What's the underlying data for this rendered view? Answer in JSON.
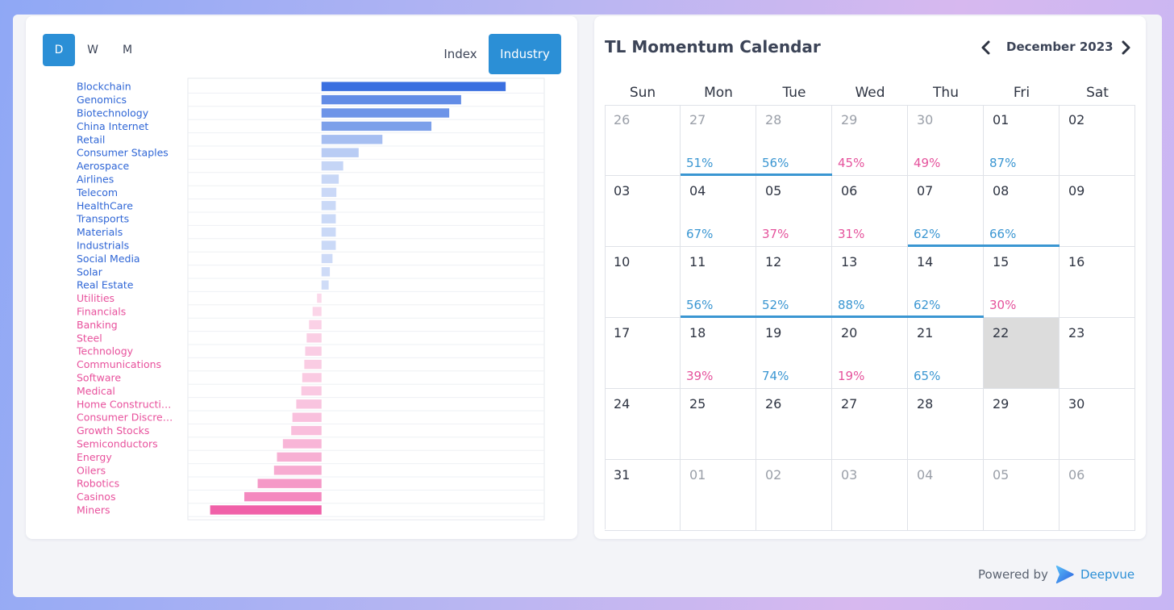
{
  "timeframes": [
    "D",
    "W",
    "M"
  ],
  "active_timeframe": "D",
  "views": {
    "index": "Index",
    "industry": "Industry"
  },
  "active_view": "Industry",
  "chart_data": {
    "type": "bar",
    "orientation": "horizontal",
    "categories": [
      "Blockchain",
      "Genomics",
      "Biotechnology",
      "China Internet",
      "Retail",
      "Consumer Staples",
      "Aerospace",
      "Airlines",
      "Telecom",
      "HealthCare",
      "Transports",
      "Materials",
      "Industrials",
      "Social Media",
      "Solar",
      "Real Estate",
      "Utilities",
      "Financials",
      "Banking",
      "Steel",
      "Technology",
      "Communications",
      "Software",
      "Medical",
      "Home Constructi…",
      "Consumer Discre…",
      "Growth Stocks",
      "Semiconductors",
      "Energy",
      "Oilers",
      "Robotics",
      "Casinos",
      "Miners"
    ],
    "values": [
      6.2,
      4.7,
      4.3,
      3.7,
      2.05,
      1.25,
      0.73,
      0.58,
      0.5,
      0.48,
      0.48,
      0.48,
      0.48,
      0.37,
      0.28,
      0.24,
      -0.15,
      -0.3,
      -0.42,
      -0.5,
      -0.55,
      -0.58,
      -0.65,
      -0.68,
      -0.85,
      -0.98,
      -1.02,
      -1.3,
      -1.5,
      -1.6,
      -2.15,
      -2.6,
      -3.75
    ],
    "xlim": [
      -4.5,
      7.5
    ],
    "positive_color": "#3a6fe0",
    "negative_color": "#f060a8",
    "positive_label_color": "#2f66d6",
    "negative_label_color": "#e8509c",
    "grid": true
  },
  "calendar": {
    "title": "TL Momentum Calendar",
    "month": "December 2023",
    "weekdays": [
      "Sun",
      "Mon",
      "Tue",
      "Wed",
      "Thu",
      "Fri",
      "Sat"
    ],
    "weeks": [
      [
        {
          "d": "26",
          "m": true
        },
        {
          "d": "27",
          "m": true,
          "p": "51%",
          "s": "up",
          "st": true
        },
        {
          "d": "28",
          "m": true,
          "p": "56%",
          "s": "up",
          "st": true
        },
        {
          "d": "29",
          "m": true,
          "p": "45%",
          "s": "down"
        },
        {
          "d": "30",
          "m": true,
          "p": "49%",
          "s": "down"
        },
        {
          "d": "01",
          "p": "87%",
          "s": "up"
        },
        {
          "d": "02"
        }
      ],
      [
        {
          "d": "03"
        },
        {
          "d": "04",
          "p": "67%",
          "s": "up"
        },
        {
          "d": "05",
          "p": "37%",
          "s": "down"
        },
        {
          "d": "06",
          "p": "31%",
          "s": "down"
        },
        {
          "d": "07",
          "p": "62%",
          "s": "up",
          "st": true
        },
        {
          "d": "08",
          "p": "66%",
          "s": "up",
          "st": true
        },
        {
          "d": "09"
        }
      ],
      [
        {
          "d": "10"
        },
        {
          "d": "11",
          "p": "56%",
          "s": "up",
          "st": true
        },
        {
          "d": "12",
          "p": "52%",
          "s": "up",
          "st": true
        },
        {
          "d": "13",
          "p": "88%",
          "s": "up",
          "st": true
        },
        {
          "d": "14",
          "p": "62%",
          "s": "up",
          "st": true
        },
        {
          "d": "15",
          "p": "30%",
          "s": "down"
        },
        {
          "d": "16"
        }
      ],
      [
        {
          "d": "17"
        },
        {
          "d": "18",
          "p": "39%",
          "s": "down"
        },
        {
          "d": "19",
          "p": "74%",
          "s": "up"
        },
        {
          "d": "20",
          "p": "19%",
          "s": "down"
        },
        {
          "d": "21",
          "p": "65%",
          "s": "up"
        },
        {
          "d": "22",
          "today": true
        },
        {
          "d": "23"
        }
      ],
      [
        {
          "d": "24"
        },
        {
          "d": "25"
        },
        {
          "d": "26"
        },
        {
          "d": "27"
        },
        {
          "d": "28"
        },
        {
          "d": "29"
        },
        {
          "d": "30"
        }
      ],
      [
        {
          "d": "31"
        },
        {
          "d": "01",
          "m": true
        },
        {
          "d": "02",
          "m": true
        },
        {
          "d": "03",
          "m": true
        },
        {
          "d": "04",
          "m": true
        },
        {
          "d": "05",
          "m": true
        },
        {
          "d": "06",
          "m": true
        }
      ]
    ],
    "up_color": "#3a96d2",
    "down_color": "#e5529c"
  },
  "footer": {
    "powered_by": "Powered by",
    "brand": "Deepvue"
  }
}
